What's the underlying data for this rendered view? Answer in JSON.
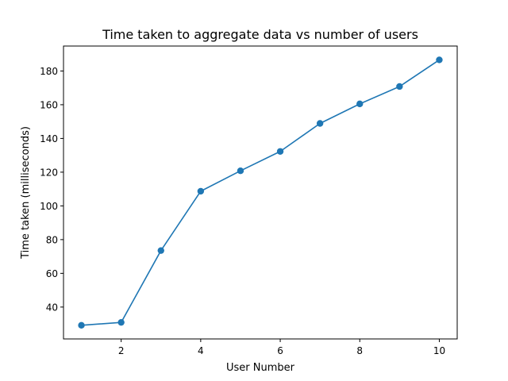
{
  "chart_data": {
    "type": "line",
    "title": "Time taken to aggregate data vs number of users",
    "xlabel": "User Number",
    "ylabel": "Time taken (milliseconds)",
    "xlim": [
      0.55,
      10.45
    ],
    "ylim": [
      21.1,
      194.8
    ],
    "xticks": [
      2,
      4,
      6,
      8,
      10
    ],
    "yticks": [
      40,
      60,
      80,
      100,
      120,
      140,
      160,
      180
    ],
    "grid": false,
    "markers": true,
    "series": [
      {
        "color": "#1f77b4",
        "x": [
          1,
          2,
          3,
          4,
          5,
          6,
          7,
          8,
          9,
          10
        ],
        "y": [
          29.2,
          30.9,
          73.5,
          108.7,
          120.8,
          132.3,
          148.9,
          160.5,
          170.8,
          186.6
        ]
      }
    ]
  }
}
